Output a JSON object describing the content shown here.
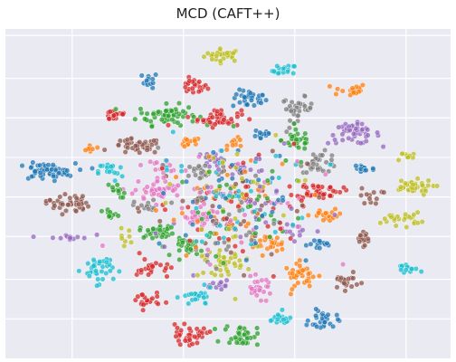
{
  "chart_data": {
    "type": "scatter",
    "title": "MCD (CAFT++)",
    "xlabel": "",
    "ylabel": "",
    "xlim": [
      0,
      100
    ],
    "ylim": [
      0,
      100
    ],
    "grid": true,
    "legend": "none",
    "background_color": "#eaeaf2",
    "grid_color": "#ffffff",
    "palette": {
      "blue": "#1f77b4",
      "orange": "#ff7f0e",
      "green": "#2ca02c",
      "red": "#d62728",
      "purple": "#9467bd",
      "brown": "#8c564b",
      "pink": "#e377c2",
      "gray": "#7f7f7f",
      "olive": "#bcbd22",
      "cyan": "#17becf"
    },
    "clusters": [
      {
        "color": "olive",
        "x": 49,
        "y": 94,
        "sx": 2.2,
        "sy": 1.0,
        "n": 30
      },
      {
        "color": "cyan",
        "x": 63,
        "y": 89,
        "sx": 1.4,
        "sy": 1.0,
        "n": 16
      },
      {
        "color": "blue",
        "x": 32,
        "y": 86,
        "sx": 0.9,
        "sy": 1.2,
        "n": 12
      },
      {
        "color": "red",
        "x": 42,
        "y": 84,
        "sx": 1.6,
        "sy": 1.2,
        "n": 22
      },
      {
        "color": "blue",
        "x": 55,
        "y": 80,
        "sx": 2.0,
        "sy": 1.4,
        "n": 34
      },
      {
        "color": "orange",
        "x": 78,
        "y": 83,
        "sx": 2.0,
        "sy": 1.0,
        "n": 22
      },
      {
        "color": "red",
        "x": 24,
        "y": 75,
        "sx": 1.5,
        "sy": 1.0,
        "n": 18
      },
      {
        "color": "green",
        "x": 36,
        "y": 75,
        "sx": 3.4,
        "sy": 1.6,
        "n": 62
      },
      {
        "color": "red",
        "x": 48,
        "y": 74,
        "sx": 2.5,
        "sy": 1.4,
        "n": 42
      },
      {
        "color": "gray",
        "x": 66,
        "y": 77,
        "sx": 1.8,
        "sy": 1.8,
        "n": 34
      },
      {
        "color": "purple",
        "x": 79,
        "y": 69,
        "sx": 3.0,
        "sy": 1.6,
        "n": 46
      },
      {
        "color": "blue",
        "x": 58,
        "y": 69,
        "sx": 1.1,
        "sy": 1.2,
        "n": 14
      },
      {
        "color": "green",
        "x": 66,
        "y": 67,
        "sx": 1.8,
        "sy": 1.6,
        "n": 30
      },
      {
        "color": "brown",
        "x": 29,
        "y": 65,
        "sx": 2.8,
        "sy": 1.2,
        "n": 42
      },
      {
        "color": "orange",
        "x": 41,
        "y": 66,
        "sx": 1.4,
        "sy": 1.0,
        "n": 12
      },
      {
        "color": "orange",
        "x": 52,
        "y": 66,
        "sx": 1.0,
        "sy": 0.8,
        "n": 10
      },
      {
        "color": "orange",
        "x": 18,
        "y": 64,
        "sx": 0.8,
        "sy": 1.0,
        "n": 8
      },
      {
        "color": "purple",
        "x": 47,
        "y": 61,
        "sx": 1.2,
        "sy": 1.4,
        "n": 16
      },
      {
        "color": "gray",
        "x": 71,
        "y": 60,
        "sx": 2.2,
        "sy": 1.6,
        "n": 34
      },
      {
        "color": "olive",
        "x": 91,
        "y": 62,
        "sx": 1.2,
        "sy": 1.0,
        "n": 10
      },
      {
        "color": "pink",
        "x": 35,
        "y": 59,
        "sx": 2.2,
        "sy": 1.0,
        "n": 18
      },
      {
        "color": "blue",
        "x": 8,
        "y": 57,
        "sx": 3.4,
        "sy": 1.3,
        "n": 58
      },
      {
        "color": "cyan",
        "x": 23,
        "y": 57,
        "sx": 1.4,
        "sy": 1.6,
        "n": 18
      },
      {
        "color": "blue",
        "x": 81,
        "y": 58,
        "sx": 1.4,
        "sy": 1.0,
        "n": 16
      },
      {
        "color": "gray",
        "x": 44,
        "y": 57,
        "sx": 1.8,
        "sy": 1.4,
        "n": 18
      },
      {
        "color": "purple",
        "x": 53,
        "y": 58,
        "sx": 1.4,
        "sy": 1.2,
        "n": 12
      },
      {
        "color": "pink",
        "x": 34,
        "y": 51,
        "sx": 2.8,
        "sy": 1.6,
        "n": 42
      },
      {
        "color": "red",
        "x": 71,
        "y": 51,
        "sx": 2.6,
        "sy": 1.2,
        "n": 42
      },
      {
        "color": "olive",
        "x": 92,
        "y": 52,
        "sx": 2.6,
        "sy": 1.2,
        "n": 36
      },
      {
        "color": "green",
        "x": 24,
        "y": 51,
        "sx": 1.2,
        "sy": 1.2,
        "n": 12
      },
      {
        "color": "brown",
        "x": 83,
        "y": 49,
        "sx": 1.3,
        "sy": 1.4,
        "n": 12
      },
      {
        "color": "brown",
        "x": 13,
        "y": 47,
        "sx": 2.5,
        "sy": 1.6,
        "n": 40
      },
      {
        "color": "gray",
        "x": 31,
        "y": 46,
        "sx": 1.3,
        "sy": 1.0,
        "n": 12
      },
      {
        "color": "orange",
        "x": 73,
        "y": 43,
        "sx": 2.0,
        "sy": 1.0,
        "n": 20
      },
      {
        "color": "green",
        "x": 23,
        "y": 43,
        "sx": 1.0,
        "sy": 1.0,
        "n": 10
      },
      {
        "color": "pink",
        "x": 44,
        "y": 42,
        "sx": 2.6,
        "sy": 1.4,
        "n": 30
      },
      {
        "color": "olive",
        "x": 90,
        "y": 42,
        "sx": 2.2,
        "sy": 1.0,
        "n": 24
      },
      {
        "color": "green",
        "x": 34,
        "y": 38,
        "sx": 2.2,
        "sy": 1.0,
        "n": 30
      },
      {
        "color": "olive",
        "x": 26,
        "y": 36,
        "sx": 0.8,
        "sy": 1.4,
        "n": 8
      },
      {
        "color": "purple",
        "x": 13,
        "y": 36,
        "sx": 2.6,
        "sy": 0.8,
        "n": 14
      },
      {
        "color": "brown",
        "x": 81,
        "y": 36,
        "sx": 1.4,
        "sy": 1.2,
        "n": 16
      },
      {
        "color": "purple",
        "x": 66,
        "y": 38,
        "sx": 1.5,
        "sy": 1.0,
        "n": 10
      },
      {
        "color": "orange",
        "x": 59,
        "y": 34,
        "sx": 2.0,
        "sy": 1.4,
        "n": 24
      },
      {
        "color": "blue",
        "x": 72,
        "y": 34,
        "sx": 1.8,
        "sy": 0.8,
        "n": 16
      },
      {
        "color": "green",
        "x": 41,
        "y": 33,
        "sx": 1.6,
        "sy": 1.4,
        "n": 26
      },
      {
        "color": "olive",
        "x": 49,
        "y": 28,
        "sx": 2.2,
        "sy": 1.8,
        "n": 34
      },
      {
        "color": "orange",
        "x": 67,
        "y": 24,
        "sx": 2.0,
        "sy": 2.0,
        "n": 34
      },
      {
        "color": "cyan",
        "x": 20,
        "y": 26,
        "sx": 1.8,
        "sy": 2.2,
        "n": 38
      },
      {
        "color": "red",
        "x": 33,
        "y": 26,
        "sx": 2.0,
        "sy": 1.4,
        "n": 22
      },
      {
        "color": "cyan",
        "x": 91,
        "y": 26,
        "sx": 1.3,
        "sy": 1.0,
        "n": 14
      },
      {
        "color": "brown",
        "x": 77,
        "y": 22,
        "sx": 1.6,
        "sy": 1.2,
        "n": 20
      },
      {
        "color": "pink",
        "x": 57,
        "y": 20,
        "sx": 1.6,
        "sy": 1.6,
        "n": 28
      },
      {
        "color": "purple",
        "x": 49,
        "y": 21,
        "sx": 1.3,
        "sy": 1.2,
        "n": 12
      },
      {
        "color": "cyan",
        "x": 43,
        "y": 17,
        "sx": 1.8,
        "sy": 1.4,
        "n": 24
      },
      {
        "color": "red",
        "x": 31,
        "y": 16,
        "sx": 1.6,
        "sy": 1.4,
        "n": 22
      },
      {
        "color": "cyan",
        "x": 62,
        "y": 10,
        "sx": 1.6,
        "sy": 1.2,
        "n": 18
      },
      {
        "color": "blue",
        "x": 72,
        "y": 10,
        "sx": 1.6,
        "sy": 1.8,
        "n": 28
      },
      {
        "color": "red",
        "x": 41,
        "y": 5,
        "sx": 2.2,
        "sy": 1.4,
        "n": 36
      },
      {
        "color": "green",
        "x": 53,
        "y": 5,
        "sx": 2.0,
        "sy": 1.6,
        "n": 34
      }
    ],
    "center_mix": {
      "x": 51,
      "y": 47,
      "sx": 9,
      "sy": 9,
      "n": 380
    }
  }
}
